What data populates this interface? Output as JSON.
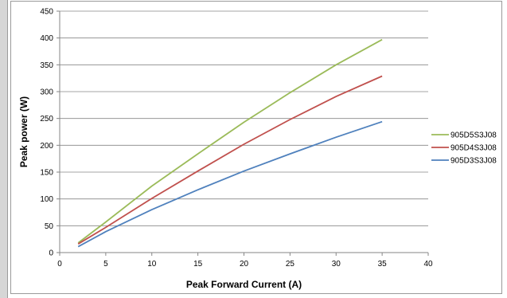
{
  "chart_data": {
    "type": "line",
    "title": "",
    "xlabel": "Peak Forward Current (A)",
    "ylabel": "Peak power (W)",
    "xlim": [
      0,
      40
    ],
    "ylim": [
      0,
      450
    ],
    "xticks": [
      0,
      5,
      10,
      15,
      20,
      25,
      30,
      35,
      40
    ],
    "yticks": [
      0,
      50,
      100,
      150,
      200,
      250,
      300,
      350,
      400,
      450
    ],
    "grid": "horizontal",
    "legend_position": "right",
    "series": [
      {
        "name": "905D5S3J08",
        "color": "#9bbb59",
        "x": [
          2,
          5,
          10,
          15,
          20,
          25,
          30,
          35
        ],
        "y": [
          18,
          57,
          124,
          184,
          243,
          298,
          350,
          397
        ]
      },
      {
        "name": "905D4S3J08",
        "color": "#c0504d",
        "x": [
          2,
          5,
          10,
          15,
          20,
          25,
          30,
          35
        ],
        "y": [
          16,
          47,
          101,
          152,
          202,
          248,
          291,
          329
        ]
      },
      {
        "name": "905D3S3J08",
        "color": "#4f81bd",
        "x": [
          2,
          5,
          10,
          15,
          20,
          25,
          30,
          35
        ],
        "y": [
          11,
          39,
          80,
          117,
          152,
          184,
          215,
          244
        ]
      }
    ]
  }
}
